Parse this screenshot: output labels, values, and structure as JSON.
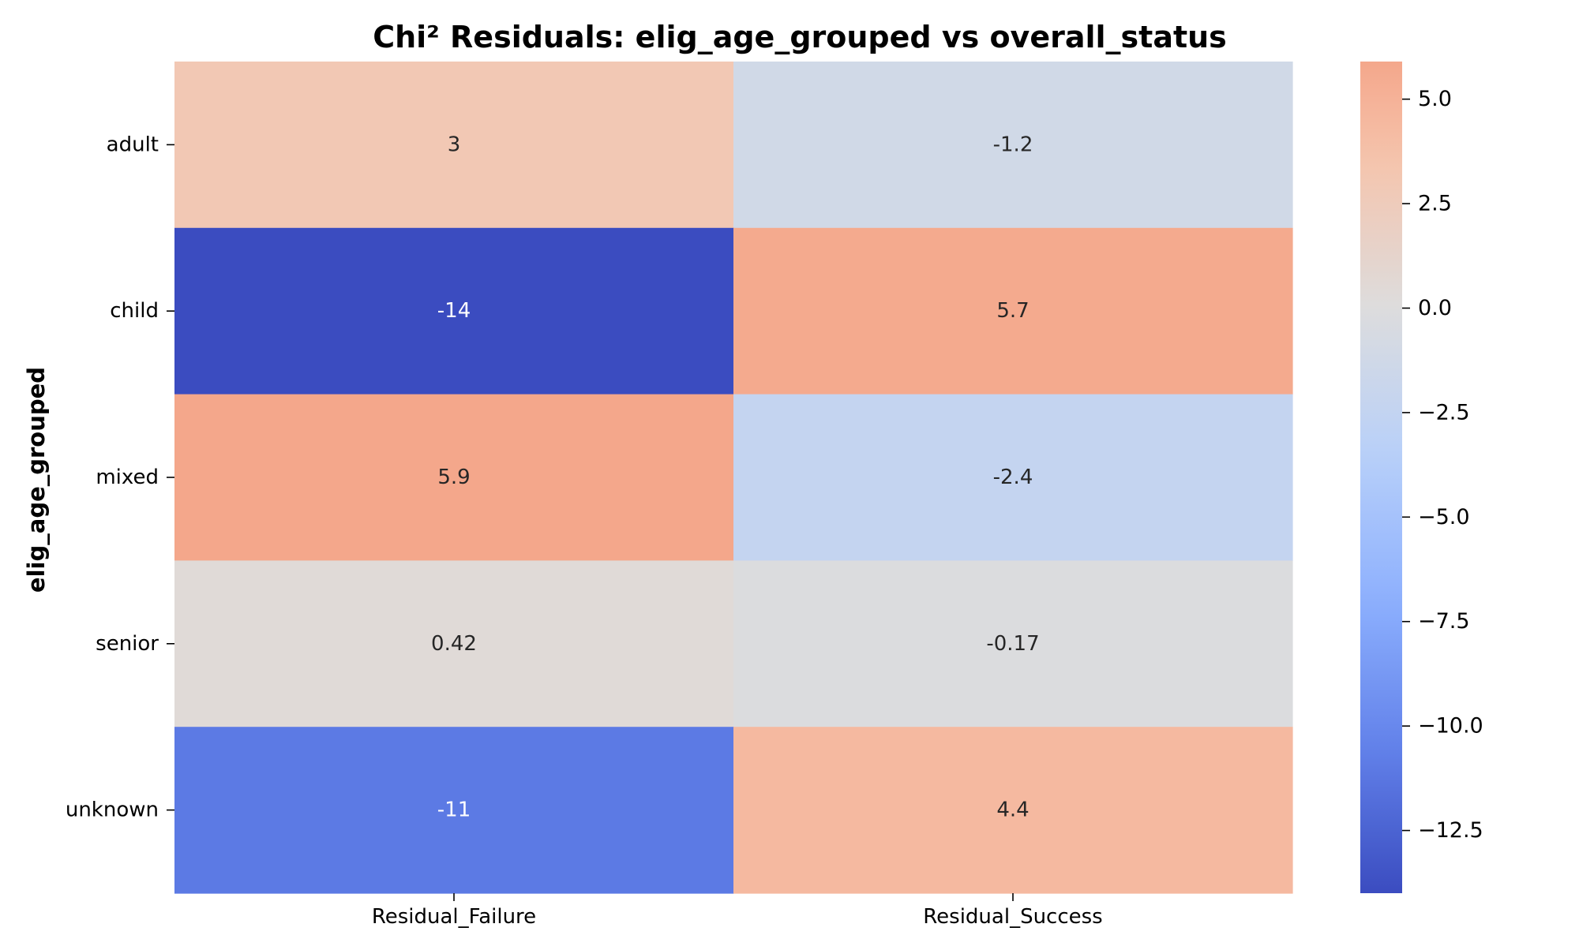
{
  "chart_data": {
    "type": "heatmap",
    "title": "Chi² Residuals: elig_age_grouped vs overall_status",
    "xlabel": "",
    "ylabel": "elig_age_grouped",
    "rows": [
      "adult",
      "child",
      "mixed",
      "senior",
      "unknown"
    ],
    "columns": [
      "Residual_Failure",
      "Residual_Success"
    ],
    "values": [
      [
        3,
        -1.2
      ],
      [
        -14,
        5.7
      ],
      [
        5.9,
        -2.4
      ],
      [
        0.42,
        -0.17
      ],
      [
        -11,
        4.4
      ]
    ],
    "value_labels": [
      [
        "3",
        "-1.2"
      ],
      [
        "-14",
        "5.7"
      ],
      [
        "5.9",
        "-2.4"
      ],
      [
        "0.42",
        "-0.17"
      ],
      [
        "-11",
        "4.4"
      ]
    ],
    "colormap": "coolwarm",
    "color_range": [
      -14,
      5.9
    ],
    "center": 0,
    "colorbar": {
      "ticks": [
        5.0,
        2.5,
        0.0,
        -2.5,
        -5.0,
        -7.5,
        -10.0,
        -12.5
      ],
      "tick_labels": [
        "5.0",
        "2.5",
        "0.0",
        "−2.5",
        "−5.0",
        "−7.5",
        "−10.0",
        "−12.5"
      ]
    }
  }
}
